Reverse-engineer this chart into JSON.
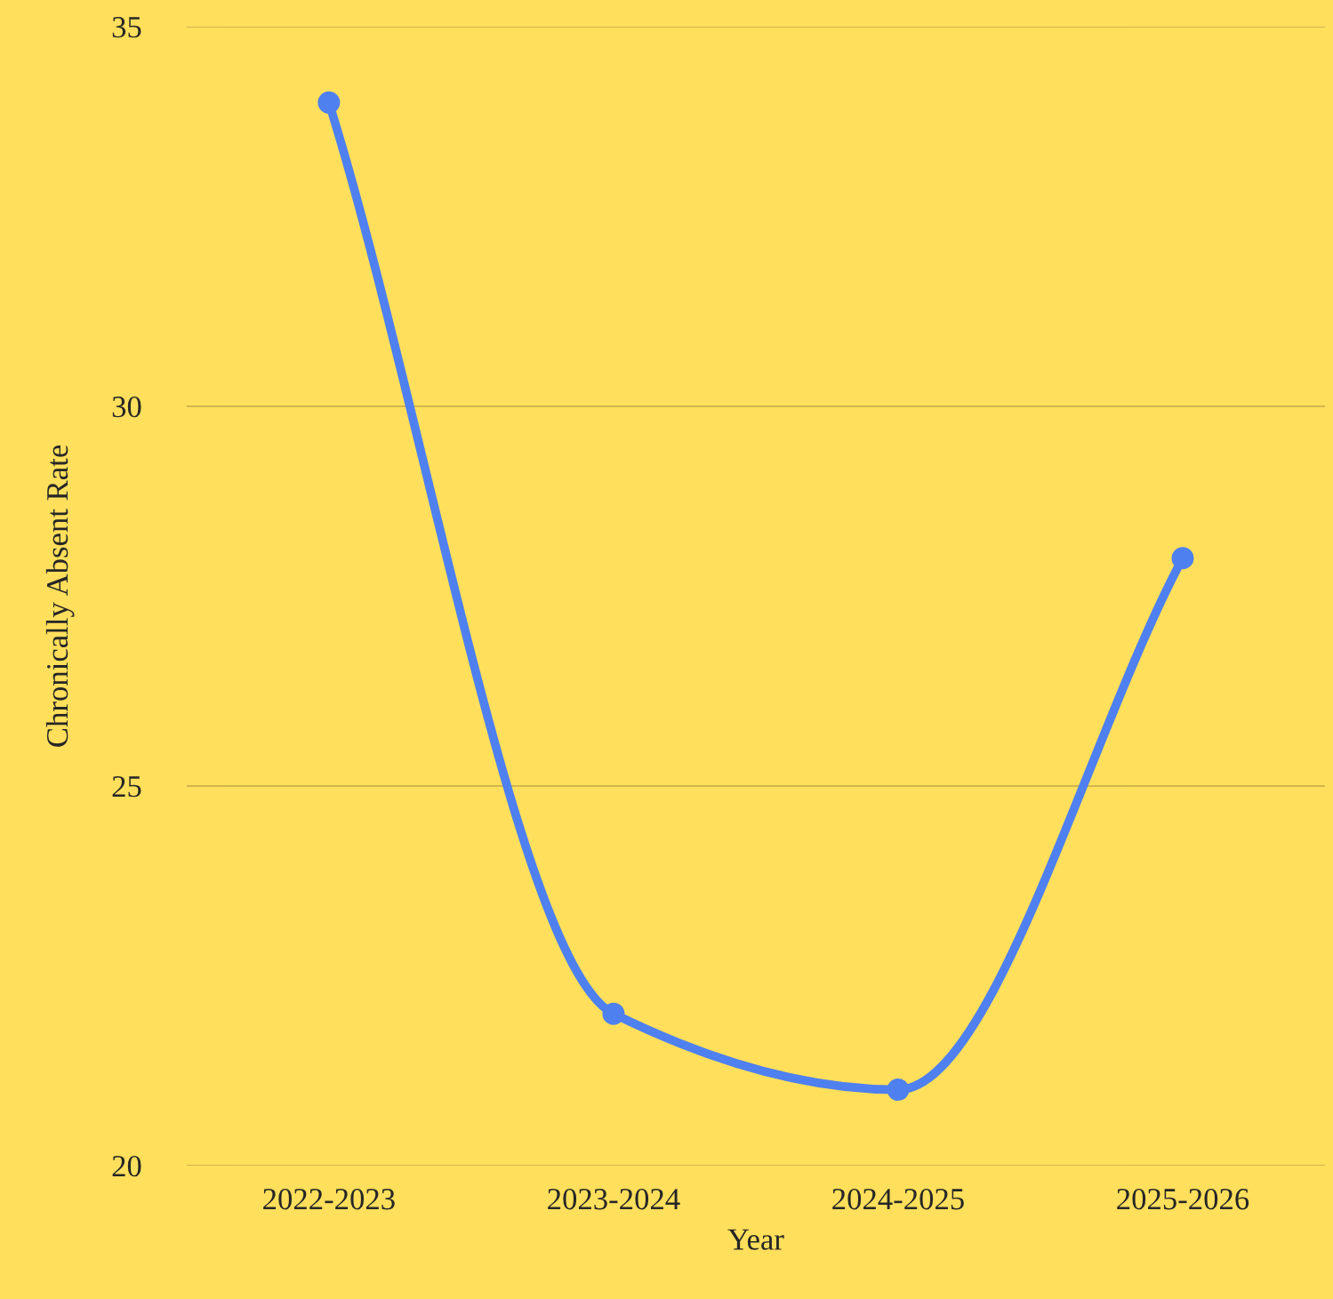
{
  "chart_data": {
    "type": "line",
    "xlabel": "Year",
    "ylabel": "Chronically Absent Rate",
    "categories": [
      "2022-2023",
      "2023-2024",
      "2024-2025",
      "2025-2026"
    ],
    "series": [
      {
        "color": "#4f80ef",
        "values": [
          34,
          22,
          21,
          28
        ]
      }
    ],
    "ylim": [
      20,
      35
    ],
    "yticks": [
      20,
      25,
      30,
      35
    ],
    "grid": "y",
    "marker": "circle",
    "line_style": "solid",
    "legend": false
  }
}
